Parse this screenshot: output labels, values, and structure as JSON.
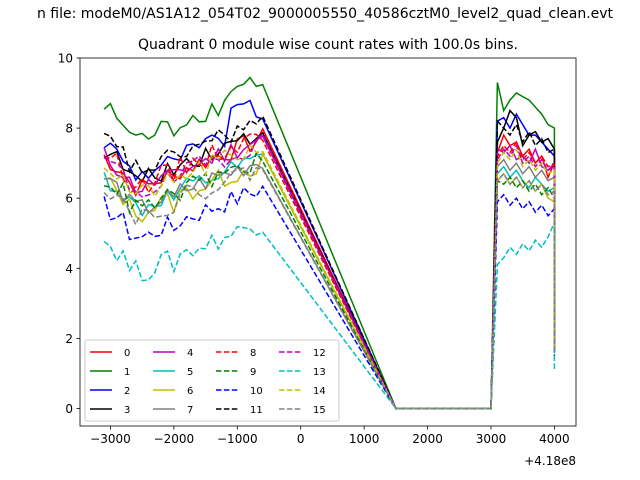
{
  "figure": {
    "suptitle": "n file: modeM0/AS1A12_054T02_9000005550_40586cztM0_level2_quad_clean.evt"
  },
  "chart_data": {
    "type": "line",
    "title": "Quadrant 0 module wise count rates with 100.0s bins.",
    "xlabel": "",
    "ylabel": "",
    "x_offset_text": "+4.18e8",
    "xlim": [
      -3480,
      4340
    ],
    "ylim": [
      -0.5,
      10.0
    ],
    "xticks": [
      -3000,
      -2000,
      -1000,
      0,
      1000,
      2000,
      3000,
      4000
    ],
    "xtick_labels": [
      "−3000",
      "−2000",
      "−1000",
      "0",
      "1000",
      "2000",
      "3000",
      "4000"
    ],
    "yticks": [
      0,
      2,
      4,
      6,
      8,
      10
    ],
    "ytick_labels": [
      "0",
      "2",
      "4",
      "6",
      "8",
      "10"
    ],
    "grid": false,
    "legend_position": "lower-left",
    "legend_columns": 4,
    "x_segment1": {
      "start": -3100,
      "step": 100,
      "count": 26
    },
    "x_segment2": {
      "start": 3100,
      "step": 100,
      "count": 10
    },
    "gap_x": [
      1500,
      3000
    ],
    "end_x": 4000,
    "series": [
      {
        "name": "0",
        "color": "#ff0000",
        "style": "solid",
        "base": 6.8,
        "end": 1.7,
        "seg2": [
          7.3,
          7.8,
          7.5,
          7.6,
          7.2,
          7.4,
          7.0,
          7.2,
          6.6,
          7.0
        ]
      },
      {
        "name": "1",
        "color": "#008000",
        "style": "solid",
        "base": 8.2,
        "end": 2.2,
        "peak": 9.5,
        "seg2": [
          9.3,
          8.5,
          8.8,
          9.0,
          8.9,
          8.8,
          8.6,
          8.4,
          8.1,
          8.0
        ]
      },
      {
        "name": "2",
        "color": "#0000ff",
        "style": "solid",
        "base": 7.2,
        "end": 2.0,
        "peak": 8.9,
        "seg2": [
          8.2,
          8.3,
          8.0,
          8.4,
          8.1,
          7.8,
          7.8,
          7.6,
          7.4,
          7.2
        ]
      },
      {
        "name": "3",
        "color": "#000000",
        "style": "solid",
        "base": 7.0,
        "end": 1.9,
        "seg2": [
          7.6,
          8.0,
          8.5,
          8.3,
          7.5,
          7.8,
          7.9,
          7.6,
          7.7,
          7.4
        ]
      },
      {
        "name": "4",
        "color": "#bf00bf",
        "style": "solid",
        "base": 6.8,
        "end": 1.8,
        "seg2": [
          7.4,
          7.3,
          7.5,
          7.1,
          7.2,
          7.0,
          7.4,
          6.9,
          6.8,
          7.0
        ]
      },
      {
        "name": "5",
        "color": "#00bfbf",
        "style": "solid",
        "base": 6.2,
        "end": 1.6,
        "seg2": [
          6.7,
          6.9,
          6.6,
          6.8,
          6.5,
          6.3,
          6.6,
          6.4,
          6.2,
          6.3
        ]
      },
      {
        "name": "6",
        "color": "#bfbf00",
        "style": "solid",
        "base": 6.1,
        "end": 1.6,
        "seg2": [
          6.5,
          6.7,
          6.4,
          6.6,
          6.3,
          6.5,
          6.2,
          6.4,
          6.0,
          5.9
        ]
      },
      {
        "name": "7",
        "color": "#808080",
        "style": "solid",
        "base": 6.2,
        "end": 1.7,
        "seg2": [
          6.9,
          7.1,
          6.8,
          7.0,
          6.7,
          6.9,
          6.6,
          6.8,
          6.5,
          6.6
        ]
      },
      {
        "name": "8",
        "color": "#ff0000",
        "style": "dashed",
        "base": 6.9,
        "end": 1.7,
        "seg2": [
          7.2,
          7.5,
          7.3,
          7.6,
          7.1,
          7.3,
          7.0,
          7.2,
          6.9,
          7.0
        ]
      },
      {
        "name": "9",
        "color": "#008000",
        "style": "dashed",
        "base": 6.2,
        "end": 1.6,
        "seg2": [
          6.5,
          6.4,
          6.6,
          6.3,
          6.5,
          6.2,
          6.4,
          6.1,
          6.3,
          6.0
        ]
      },
      {
        "name": "10",
        "color": "#0000ff",
        "style": "dashed",
        "base": 5.4,
        "end": 1.5,
        "seg2": [
          5.9,
          6.1,
          5.8,
          6.0,
          5.7,
          5.9,
          5.6,
          5.8,
          5.5,
          5.7
        ]
      },
      {
        "name": "11",
        "color": "#000000",
        "style": "dashed",
        "base": 7.3,
        "end": 1.9,
        "seg2": [
          8.2,
          8.0,
          7.8,
          8.1,
          7.6,
          7.9,
          7.5,
          7.7,
          7.3,
          7.4
        ]
      },
      {
        "name": "12",
        "color": "#bf00bf",
        "style": "dashed",
        "base": 6.7,
        "end": 1.7,
        "seg2": [
          7.1,
          7.4,
          7.2,
          7.5,
          7.0,
          7.2,
          6.9,
          7.1,
          6.8,
          6.9
        ]
      },
      {
        "name": "13",
        "color": "#00bfbf",
        "style": "dashed",
        "base": 4.4,
        "end": 1.1,
        "seg2": [
          4.1,
          4.3,
          4.6,
          4.4,
          4.7,
          4.5,
          4.8,
          4.6,
          4.9,
          5.3
        ]
      },
      {
        "name": "14",
        "color": "#bfbf00",
        "style": "dashed",
        "base": 6.6,
        "end": 1.7,
        "seg2": [
          7.0,
          7.3,
          7.1,
          7.4,
          6.9,
          7.1,
          6.8,
          7.0,
          6.7,
          6.8
        ]
      },
      {
        "name": "15",
        "color": "#808080",
        "style": "dashed",
        "base": 6.0,
        "end": 1.6,
        "seg2": [
          6.5,
          6.7,
          6.4,
          6.6,
          6.3,
          6.5,
          6.2,
          6.4,
          6.1,
          6.2
        ]
      }
    ]
  }
}
